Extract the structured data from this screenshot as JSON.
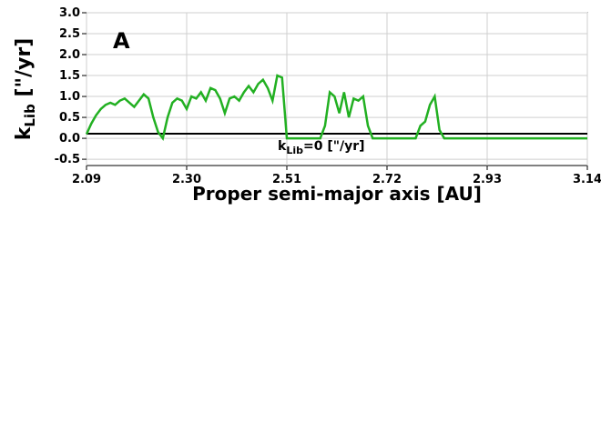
{
  "chart_data": [
    {
      "panel_label": "A",
      "type": "line",
      "xlabel": "Proper semi-major axis [AU]",
      "ylabel": {
        "base": "k",
        "sub": "Lib",
        "unit": " [\"/yr]"
      },
      "annotation": {
        "base": "k",
        "sub": "Lib",
        "rest": "=0 [\"/yr]"
      },
      "xlim": [
        2.09,
        3.14
      ],
      "ylim": [
        -0.65,
        3.0
      ],
      "xticks": [
        "2.09",
        "2.30",
        "2.51",
        "2.72",
        "2.93",
        "3.14"
      ],
      "yticks": [
        "3.0",
        "2.5",
        "2.0",
        "1.5",
        "1.0",
        "0.5",
        "0.0",
        "-0.5"
      ],
      "reference_line": 0,
      "colors": {
        "green": "#22b022",
        "blue": "#1a1aee",
        "band_green": "#98dc98",
        "band_blue": "#b4b4ee"
      },
      "series": [
        {
          "x": [
            2.09,
            2.1,
            2.11,
            2.12,
            2.13,
            2.14,
            2.15,
            2.16,
            2.17,
            2.18,
            2.19,
            2.2,
            2.21,
            2.22,
            2.23,
            2.24,
            2.25,
            2.26,
            2.27,
            2.28,
            2.29,
            2.3,
            2.31,
            2.32,
            2.33,
            2.34,
            2.35,
            2.36,
            2.37,
            2.38,
            2.39,
            2.4,
            2.41,
            2.42,
            2.43,
            2.44,
            2.45,
            2.46,
            2.47,
            2.48,
            2.49,
            2.5,
            2.51,
            2.52,
            2.53,
            2.54,
            2.55,
            2.56,
            2.57,
            2.58,
            2.59,
            2.6,
            2.61,
            2.62,
            2.63,
            2.64,
            2.65,
            2.66,
            2.67,
            2.68,
            2.69,
            2.7,
            2.71,
            2.72,
            2.73,
            2.74,
            2.75,
            2.76,
            2.77,
            2.78,
            2.79,
            2.8,
            2.81,
            2.82,
            2.83,
            2.84,
            2.85,
            2.86,
            2.87,
            2.88,
            2.89,
            2.9,
            2.91,
            2.92,
            2.93,
            2.94,
            2.95,
            2.96,
            2.97,
            2.98,
            2.99,
            3.0,
            3.01,
            3.02,
            3.03,
            3.04,
            3.05,
            3.06,
            3.07,
            3.08,
            3.09,
            3.1,
            3.11,
            3.12,
            3.13,
            3.14
          ],
          "y": [
            0.1,
            0.35,
            0.55,
            0.7,
            0.8,
            0.85,
            0.8,
            0.9,
            0.95,
            0.85,
            0.75,
            0.9,
            1.05,
            0.95,
            0.5,
            0.15,
            0.0,
            0.5,
            0.85,
            0.95,
            0.9,
            0.7,
            1.0,
            0.95,
            1.1,
            0.9,
            1.2,
            1.15,
            0.95,
            0.6,
            0.95,
            1.0,
            0.9,
            1.1,
            1.25,
            1.1,
            1.3,
            1.4,
            1.2,
            0.9,
            1.5,
            1.45,
            0.0,
            0.0,
            0.0,
            0.0,
            0.0,
            0.0,
            0.0,
            0.0,
            0.3,
            1.1,
            1.0,
            0.6,
            1.1,
            0.5,
            0.95,
            0.9,
            1.0,
            0.3,
            0.0,
            0.0,
            0.0,
            0.0,
            0.0,
            0.0,
            0.0,
            0.0,
            0.0,
            0.0,
            0.3,
            0.4,
            0.8,
            1.0,
            0.2,
            0.0,
            0.0,
            0.0,
            0.0,
            0.0,
            0.0,
            0.0,
            0.0,
            0.0,
            0.0,
            0.0,
            0.0,
            0.0,
            0.0,
            0.0,
            0.0,
            0.0,
            0.0,
            0.0,
            0.0,
            0.0,
            0.0,
            0.0,
            0.0,
            0.0,
            0.0,
            0.0,
            0.0,
            0.0,
            0.0,
            0.0
          ],
          "note": "green line values"
        }
      ]
    }
  ]
}
